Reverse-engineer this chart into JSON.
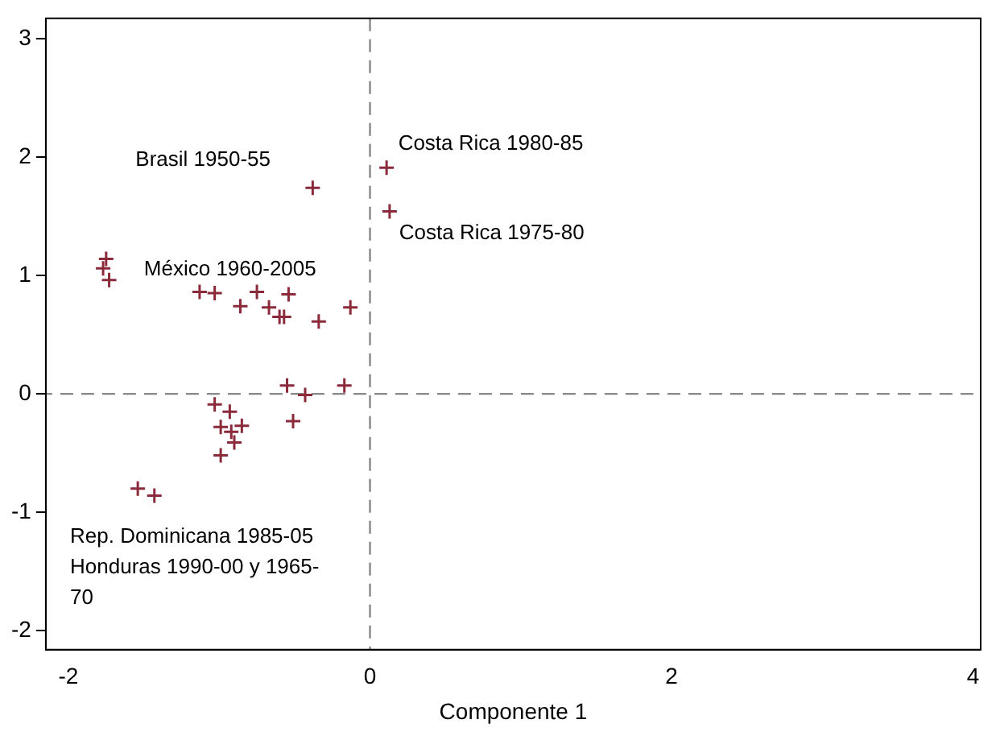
{
  "chart_data": {
    "type": "scatter",
    "xlabel": "Componente 1",
    "x": [
      0.11,
      0.13,
      -0.38,
      -1.75,
      -1.77,
      -1.73,
      -1.13,
      -1.03,
      -0.75,
      -0.54,
      -0.86,
      -0.67,
      -0.6,
      -0.57,
      -0.34,
      -0.13,
      -0.55,
      -0.43,
      -0.17,
      -0.51,
      -1.03,
      -0.93,
      -0.99,
      -0.85,
      -0.92,
      -0.9,
      -0.99,
      -1.54,
      -1.43
    ],
    "values": [
      1.91,
      1.54,
      1.74,
      1.14,
      1.06,
      0.96,
      0.86,
      0.85,
      0.86,
      0.84,
      0.74,
      0.73,
      0.65,
      0.65,
      0.61,
      0.73,
      0.07,
      -0.01,
      0.07,
      -0.23,
      -0.09,
      -0.15,
      -0.28,
      -0.27,
      -0.32,
      -0.41,
      -0.52,
      -0.8,
      -0.86
    ],
    "color": "#8b2a3a",
    "marker": "cross",
    "xlim": [
      -2.15,
      4.05
    ],
    "xticks": [
      -2,
      0,
      2,
      4
    ],
    "ylim": [
      -2.16,
      3.17
    ],
    "yticks": [
      -2,
      -1,
      0,
      1,
      2,
      3
    ],
    "grid": false,
    "legend": false,
    "ref_lines": [
      {
        "axis": "x",
        "value": 0,
        "color": "#888888",
        "line_style": "dashed"
      },
      {
        "axis": "y",
        "value": 0,
        "color": "#888888",
        "line_style": "dashed"
      }
    ],
    "annotations": [
      "Brasil 1950-55",
      "Costa Rica 1980-85",
      "Costa Rica 1975-80",
      "México 1960-2005",
      "Rep. Dominicana 1985-05\nHonduras 1990-00 y 1965-\n70"
    ]
  }
}
